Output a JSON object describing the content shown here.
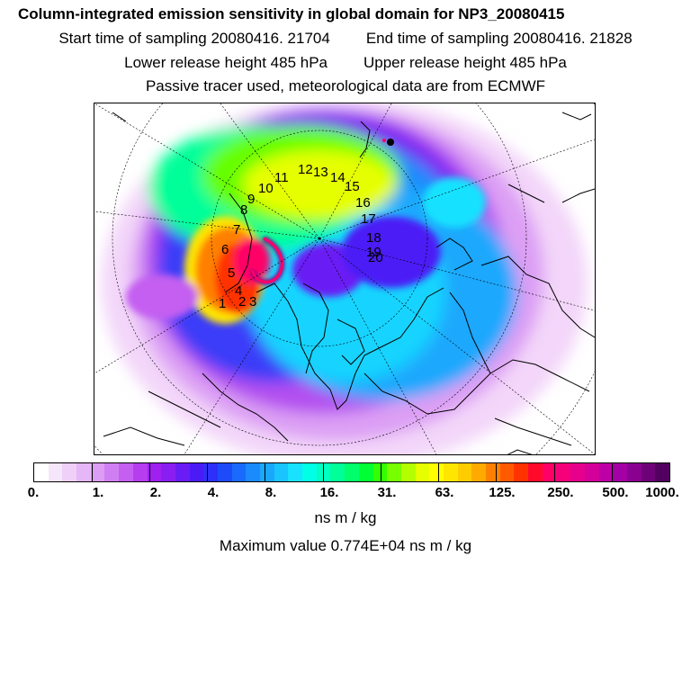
{
  "header": {
    "title": "Column-integrated emission sensitivity in global domain for NP3_20080415",
    "start_label": "Start time of sampling 20080416. 21704",
    "end_label": "End time of sampling 20080416. 21828",
    "lower_label": "Lower release height  485 hPa",
    "upper_label": "Upper release height  485 hPa",
    "tracer_label": "Passive tracer used, meteorological data are from ECMWF"
  },
  "map": {
    "trajectory_labels": [
      "1",
      "2",
      "3",
      "4",
      "5",
      "6",
      "7",
      "8",
      "9",
      "10",
      "11",
      "12",
      "13",
      "14",
      "15",
      "16",
      "17",
      "18",
      "19",
      "20"
    ]
  },
  "colorbar": {
    "colors": [
      "#ffffff",
      "#f6e6fb",
      "#eed0f8",
      "#e5b7f6",
      "#dc9df4",
      "#d07ff2",
      "#c45ff1",
      "#b63df0",
      "#a020f0",
      "#8a1ef2",
      "#6a1cf4",
      "#4b1bf6",
      "#2e2ff8",
      "#1e4bfa",
      "#1a6afb",
      "#1b8afc",
      "#1aa8fd",
      "#18c5fe",
      "#18e2ff",
      "#00ffe6",
      "#00ffc0",
      "#00ff99",
      "#00ff6a",
      "#00ff33",
      "#33ff00",
      "#77ff00",
      "#b3ff00",
      "#e6ff00",
      "#ffff00",
      "#ffe600",
      "#ffcc00",
      "#ffaa00",
      "#ff8000",
      "#ff5a00",
      "#ff3300",
      "#ff0a2a",
      "#ff0066",
      "#f5007a",
      "#e6008c",
      "#d3009a",
      "#bd00a5",
      "#a300a5",
      "#8a0090",
      "#6e0078",
      "#520060"
    ],
    "tick_labels": [
      "0.",
      "1.",
      "2.",
      "4.",
      "8.",
      "16.",
      "31.",
      "63.",
      "125.",
      "250.",
      "500.",
      "1000."
    ],
    "units": "ns m / kg"
  },
  "footer": {
    "max_label": "Maximum value  0.774E+04 ns m / kg"
  }
}
